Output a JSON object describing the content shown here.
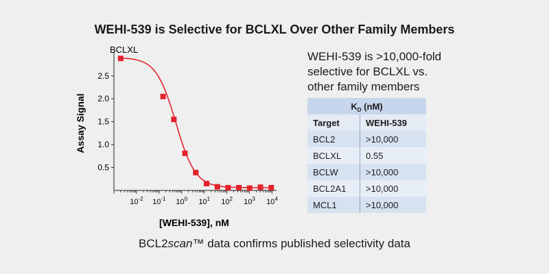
{
  "title": "WEHI-539 is Selective for BCLXL Over Other Family Members",
  "footer": {
    "before": "BCL2",
    "italic": "scan",
    "after": "™ data confirms published selectivity data"
  },
  "callout_lines": [
    "WEHI-539 is >10,000-fold",
    "selective for BCLXL vs.",
    "other family members"
  ],
  "table": {
    "header_main": "K",
    "header_sub": "D",
    "header_unit": " (nM)",
    "columns": [
      "Target",
      "WEHI-539"
    ],
    "rows": [
      {
        "target": "BCL2",
        "value": ">10,000"
      },
      {
        "target": "BCLXL",
        "value": "0.55"
      },
      {
        "target": "BCLW",
        "value": ">10,000"
      },
      {
        "target": "BCL2A1",
        "value": ">10,000"
      },
      {
        "target": "MCL1",
        "value": ">10,000"
      }
    ]
  },
  "chart_data": {
    "type": "scatter",
    "series_label": "BCLXL",
    "xlabel": "[WEHI-539], nM",
    "ylabel": "Assay Signal",
    "xscale": "log",
    "xlim_log10": [
      -3,
      4.2
    ],
    "ylim": [
      0,
      2.9
    ],
    "x_tick_exponents": [
      -2,
      -1,
      0,
      1,
      2,
      3,
      4
    ],
    "y_ticks": [
      0.5,
      1.0,
      1.5,
      2.0,
      2.5
    ],
    "y_tick_labels": [
      "0.5",
      "1.0",
      "1.5",
      "2.0",
      "2.5"
    ],
    "points": [
      {
        "x": 0.002,
        "y": 2.88
      },
      {
        "x": 0.15,
        "y": 2.05
      },
      {
        "x": 0.45,
        "y": 1.55
      },
      {
        "x": 1.4,
        "y": 0.81
      },
      {
        "x": 4.2,
        "y": 0.39
      },
      {
        "x": 12.6,
        "y": 0.15
      },
      {
        "x": 38,
        "y": 0.08
      },
      {
        "x": 113,
        "y": 0.06
      },
      {
        "x": 340,
        "y": 0.06
      },
      {
        "x": 1020,
        "y": 0.05
      },
      {
        "x": 3070,
        "y": 0.07
      },
      {
        "x": 9200,
        "y": 0.06
      }
    ],
    "fit": {
      "top": 2.9,
      "bottom": 0.06,
      "ic50": 0.55,
      "hill": 1.0
    },
    "color": "#e3222c"
  }
}
